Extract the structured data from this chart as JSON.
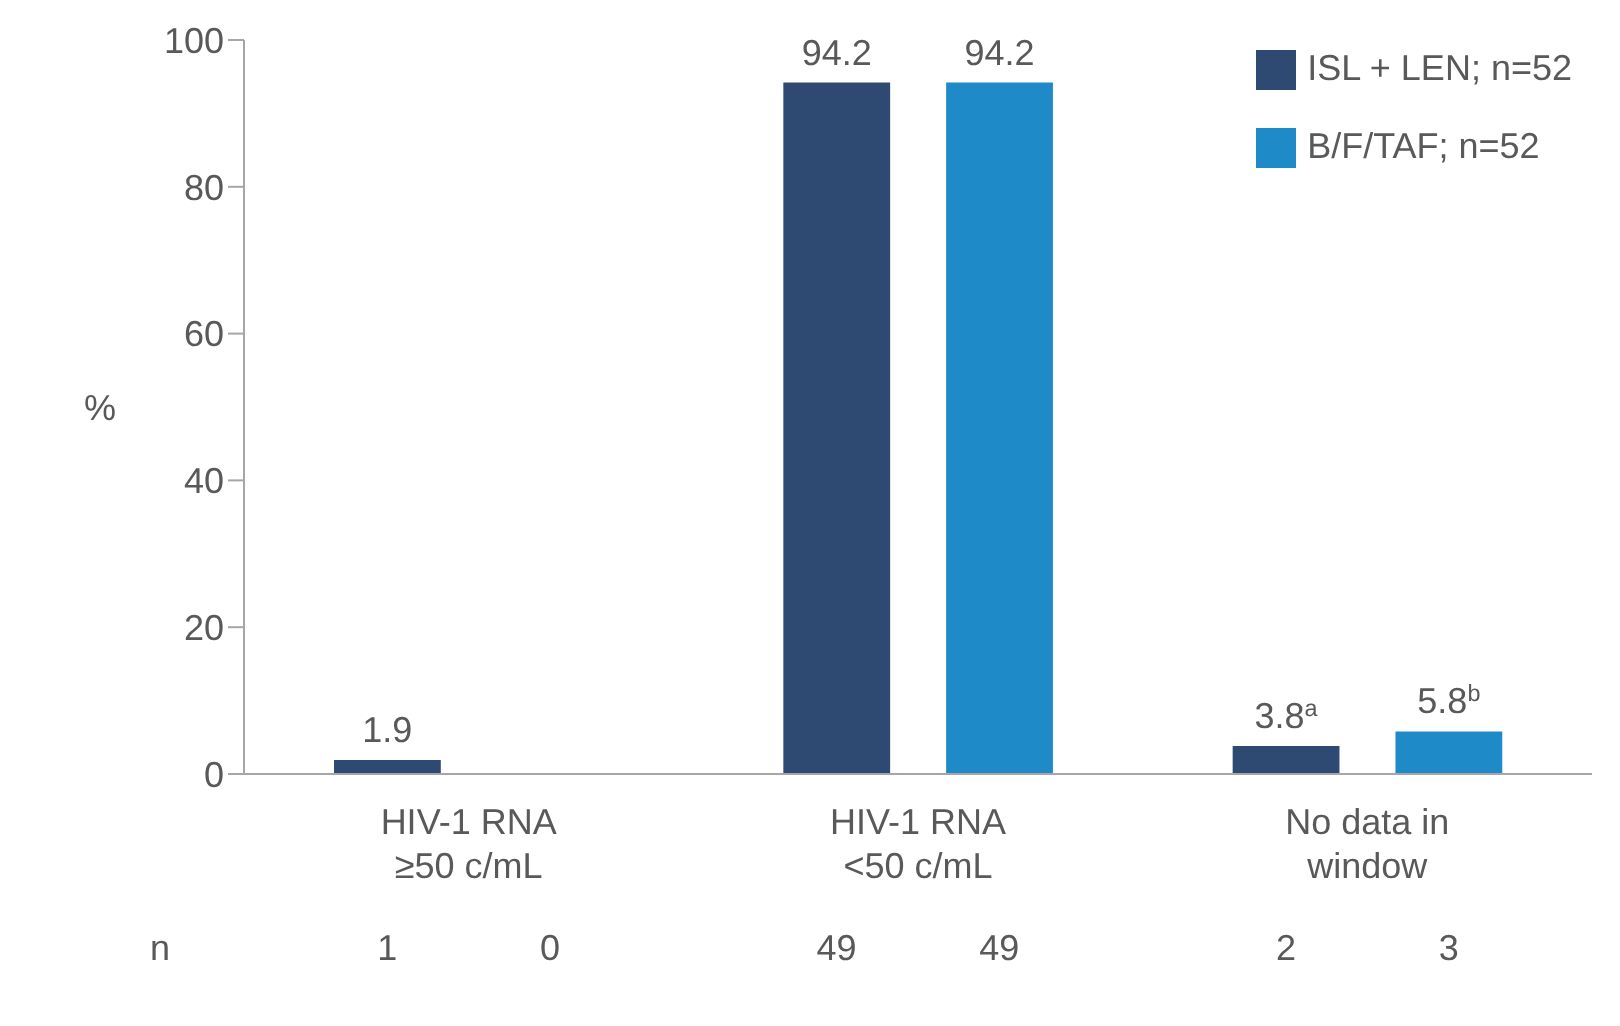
{
  "chart_data": {
    "type": "bar",
    "ylabel": "%",
    "categories": [
      "HIV-1 RNA\n≥50 c/mL",
      "HIV-1 RNA\n<50 c/mL",
      "No data in\nwindow"
    ],
    "series": [
      {
        "name": "ISL + LEN; n=52",
        "color": "#2f4a72",
        "values": [
          1.9,
          94.2,
          3.8
        ],
        "value_labels": [
          "1.9",
          "94.2",
          "3.8$^{a}$"
        ]
      },
      {
        "name": "B/F/TAF; n=52",
        "color": "#1e8bc8",
        "values": [
          0,
          94.2,
          5.8
        ],
        "value_labels": [
          null,
          "94.2",
          "5.8$^{b}$"
        ]
      }
    ],
    "ylim": [
      0,
      100
    ],
    "yticks": [
      0,
      20,
      40,
      60,
      80,
      100
    ],
    "grid": false,
    "legend": "top right",
    "annotations": [
      "n",
      "1",
      "0",
      "49",
      "49",
      "2",
      "3"
    ]
  }
}
